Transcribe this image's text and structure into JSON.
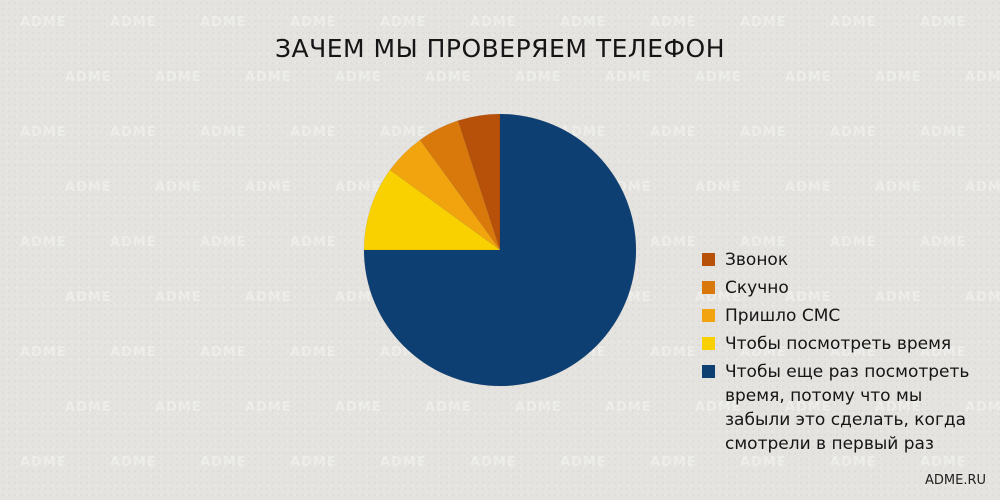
{
  "credit": "ADME.RU",
  "watermark_text": "ADME",
  "colors": {
    "background": "#e4e3df"
  },
  "chart_data": {
    "type": "pie",
    "title": "ЗАЧЕМ МЫ ПРОВЕРЯЕМ ТЕЛЕФОН",
    "start": "12 o'clock",
    "direction": "counterclockwise",
    "legend_placement": "right",
    "slices": [
      {
        "label": "Звонок",
        "value": 5,
        "color": "#b7510a"
      },
      {
        "label": "Скучно",
        "value": 5,
        "color": "#d9780b"
      },
      {
        "label": "Пришло СМС",
        "value": 5,
        "color": "#f2a40f"
      },
      {
        "label": "Чтобы посмотреть время",
        "value": 10,
        "color": "#f9d100"
      },
      {
        "label": "Чтобы еще раз посмотреть время, потому что мы забыли это сделать, когда смотрели в первый раз",
        "value": 75,
        "color": "#0e3f73"
      }
    ]
  }
}
